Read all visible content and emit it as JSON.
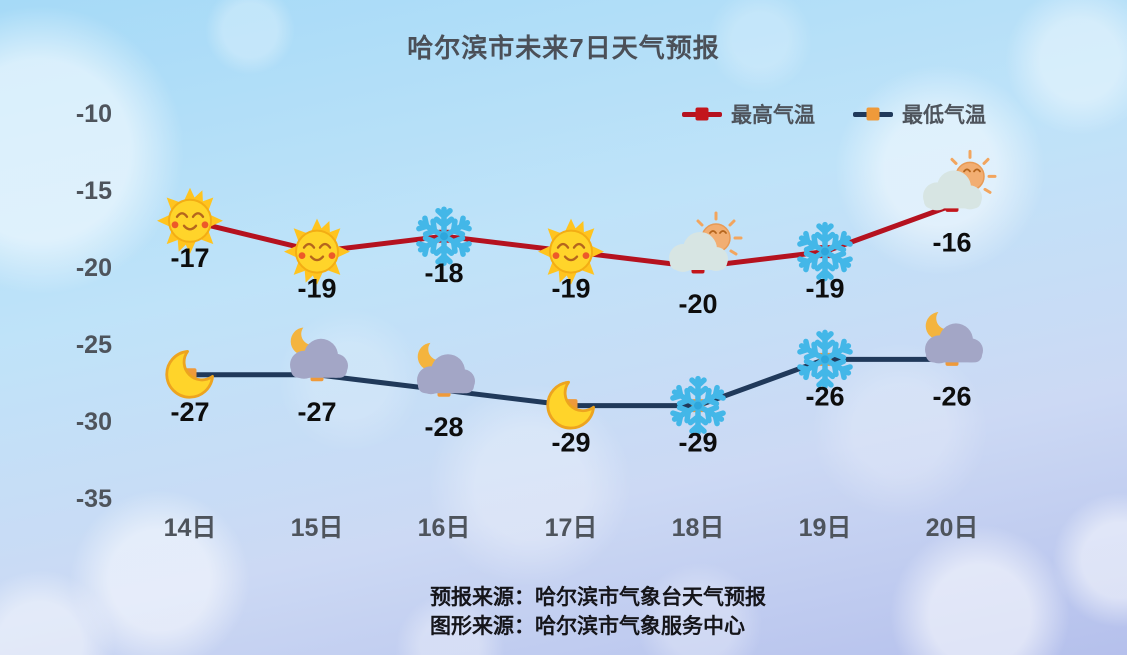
{
  "chart_data": {
    "type": "line",
    "title": "哈尔滨市未来7日天气预报",
    "categories": [
      "14日",
      "15日",
      "16日",
      "17日",
      "18日",
      "19日",
      "20日"
    ],
    "series": [
      {
        "name": "最高气温",
        "values": [
          -17,
          -19,
          -18,
          -19,
          -20,
          -19,
          -16
        ],
        "line_color": "#b5121f",
        "marker_color": "#c3161c",
        "icons": [
          "sun-icon",
          "sun-icon",
          "snowflake-icon",
          "sun-icon",
          "cloud-sun-icon",
          "snowflake-icon",
          "cloud-sun-icon"
        ]
      },
      {
        "name": "最低气温",
        "values": [
          -27,
          -27,
          -28,
          -29,
          -29,
          -26,
          -26
        ],
        "line_color": "#20395a",
        "marker_color": "#ef9a3a",
        "icons": [
          "moon-icon",
          "cloud-moon-icon",
          "cloud-moon-icon",
          "moon-icon",
          "snowflake-icon",
          "snowflake-icon",
          "cloud-moon-icon"
        ]
      }
    ],
    "yticks": [
      -10,
      -15,
      -20,
      -25,
      -30,
      -35
    ],
    "ylim": [
      -36,
      -9
    ],
    "xlabel": "",
    "ylabel": "",
    "grid": false,
    "legend_position": "top-right",
    "value_labels": true
  },
  "footer": {
    "source_line": "预报来源：哈尔滨市气象台天气预报",
    "graphic_line": "图形来源：哈尔滨市气象服务中心"
  },
  "colors": {
    "background_top": "#a6daf7",
    "background_bottom": "#b5c0ec",
    "title_text": "#4b5058",
    "tick_text": "#4e545c",
    "value_text": "#0d0d0d",
    "snowflake_blue": "#43b7e8",
    "sun_yellow": "#ffd42a",
    "night_cloud_purple": "#a3a6c6",
    "day_cloud_gray": "#d7e5e3"
  }
}
